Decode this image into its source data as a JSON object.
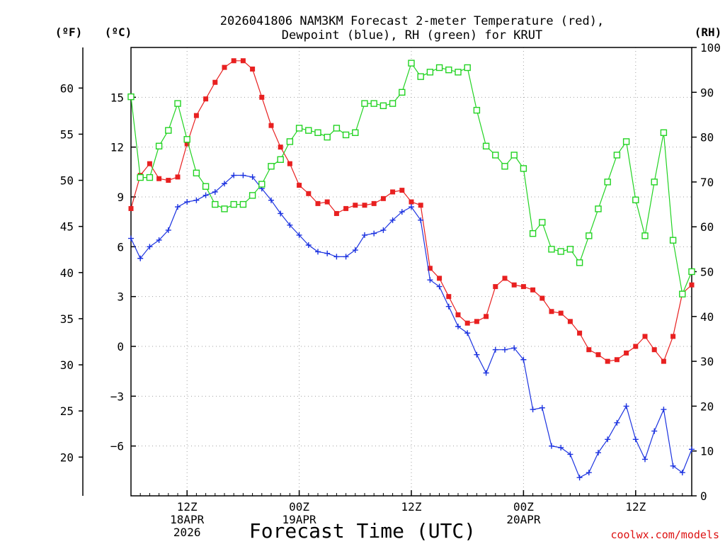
{
  "chart_data": {
    "type": "line",
    "title_line1": "2026041806 NAM3KM Forecast 2-meter Temperature (red),",
    "title_line2": "Dewpoint (blue), RH (green) for KRUT",
    "xlabel": "Forecast Time (UTC)",
    "credit": "coolwx.com/models",
    "units": {
      "fahrenheit": "(ºF)",
      "celsius": "(ºC)",
      "rh": "(RH)"
    },
    "x_unit": "forecast hour",
    "x_range": [
      0,
      60
    ],
    "celsius_range": [
      -9,
      18
    ],
    "fahrenheit_ticks": [
      "20",
      "25",
      "30",
      "35",
      "40",
      "45",
      "50",
      "55",
      "60"
    ],
    "celsius_ticks": [
      "−6",
      "−3",
      "0",
      "3",
      "6",
      "9",
      "12",
      "15"
    ],
    "rh_ticks": [
      "0",
      "10",
      "20",
      "30",
      "40",
      "50",
      "60",
      "70",
      "80",
      "90",
      "100"
    ],
    "x_ticks": [
      {
        "hour": 6,
        "lines": [
          "12Z",
          "18APR",
          "2026"
        ]
      },
      {
        "hour": 18,
        "lines": [
          "00Z",
          "19APR"
        ]
      },
      {
        "hour": 30,
        "lines": [
          "12Z"
        ]
      },
      {
        "hour": 42,
        "lines": [
          "00Z",
          "20APR"
        ]
      },
      {
        "hour": 54,
        "lines": [
          "12Z"
        ]
      }
    ],
    "series": [
      {
        "name": "Temperature (°C)",
        "color": "#e82020",
        "marker": "square-filled",
        "axis": "celsius",
        "x": [
          0,
          1,
          2,
          3,
          4,
          5,
          6,
          7,
          8,
          9,
          10,
          11,
          12,
          13,
          14,
          15,
          16,
          17,
          18,
          19,
          20,
          21,
          22,
          23,
          24,
          25,
          26,
          27,
          28,
          29,
          30,
          31,
          32,
          33,
          34,
          35,
          36,
          37,
          38,
          39,
          40,
          41,
          42,
          43,
          44,
          45,
          46,
          47,
          48,
          49,
          50,
          51,
          52,
          53,
          54,
          55,
          56,
          57,
          58,
          59,
          60
        ],
        "values": [
          8.3,
          10.3,
          11.0,
          10.1,
          10.0,
          10.2,
          12.2,
          13.9,
          14.9,
          15.9,
          16.8,
          17.2,
          17.2,
          16.7,
          15.0,
          13.3,
          12.0,
          11.0,
          9.7,
          9.2,
          8.6,
          8.7,
          8.0,
          8.3,
          8.5,
          8.5,
          8.6,
          8.9,
          9.3,
          9.4,
          8.7,
          8.5,
          4.7,
          4.1,
          3.0,
          1.9,
          1.4,
          1.5,
          1.8,
          3.6,
          4.1,
          3.7,
          3.6,
          3.4,
          2.9,
          2.1,
          2.0,
          1.5,
          0.8,
          -0.2,
          -0.5,
          -0.9,
          -0.8,
          -0.4,
          -0.0,
          0.6,
          -0.2,
          -0.9,
          0.6,
          3.2,
          3.7
        ]
      },
      {
        "name": "Dewpoint (°C)",
        "color": "#1c33e0",
        "marker": "plus",
        "axis": "celsius",
        "x": [
          0,
          1,
          2,
          3,
          4,
          5,
          6,
          7,
          8,
          9,
          10,
          11,
          12,
          13,
          14,
          15,
          16,
          17,
          18,
          19,
          20,
          21,
          22,
          23,
          24,
          25,
          26,
          27,
          28,
          29,
          30,
          31,
          32,
          33,
          34,
          35,
          36,
          37,
          38,
          39,
          40,
          41,
          42,
          43,
          44,
          45,
          46,
          47,
          48,
          49,
          50,
          51,
          52,
          53,
          54,
          55,
          56,
          57,
          58,
          59,
          60
        ],
        "values": [
          6.5,
          5.3,
          6.0,
          6.4,
          7.0,
          8.4,
          8.7,
          8.8,
          9.1,
          9.3,
          9.8,
          10.3,
          10.3,
          10.2,
          9.5,
          8.8,
          8.0,
          7.3,
          6.7,
          6.1,
          5.7,
          5.6,
          5.4,
          5.4,
          5.8,
          6.7,
          6.8,
          7.0,
          7.6,
          8.1,
          8.4,
          7.6,
          4.0,
          3.6,
          2.4,
          1.2,
          0.8,
          -0.5,
          -1.6,
          -0.2,
          -0.2,
          -0.1,
          -0.8,
          -3.8,
          -3.7,
          -6.0,
          -6.1,
          -6.5,
          -7.9,
          -7.6,
          -6.4,
          -5.6,
          -4.6,
          -3.6,
          -5.6,
          -6.8,
          -5.1,
          -3.8,
          -7.2,
          -7.6,
          -6.2
        ]
      },
      {
        "name": "RH (%)",
        "color": "#22d322",
        "marker": "square-open",
        "axis": "rh",
        "x": [
          0,
          1,
          2,
          3,
          4,
          5,
          6,
          7,
          8,
          9,
          10,
          11,
          12,
          13,
          14,
          15,
          16,
          17,
          18,
          19,
          20,
          21,
          22,
          23,
          24,
          25,
          26,
          27,
          28,
          29,
          30,
          31,
          32,
          33,
          34,
          35,
          36,
          37,
          38,
          39,
          40,
          41,
          42,
          43,
          44,
          45,
          46,
          47,
          48,
          49,
          50,
          51,
          52,
          53,
          54,
          55,
          56,
          57,
          58,
          59,
          60
        ],
        "values": [
          89,
          71,
          71,
          78,
          81.5,
          87.5,
          79.5,
          72,
          69,
          65,
          64,
          65,
          65,
          67,
          69.5,
          73.5,
          75,
          79,
          82,
          81.5,
          81,
          80,
          82,
          80.5,
          81,
          87.5,
          87.5,
          87,
          87.5,
          90,
          96.5,
          93.5,
          94.5,
          95.5,
          95,
          94.5,
          95.5,
          86,
          78,
          76,
          73.5,
          76,
          73,
          58.5,
          61,
          55,
          54.5,
          55,
          52,
          58,
          64,
          70,
          76,
          79,
          66,
          58,
          70,
          81,
          57,
          45,
          50
        ]
      }
    ]
  }
}
